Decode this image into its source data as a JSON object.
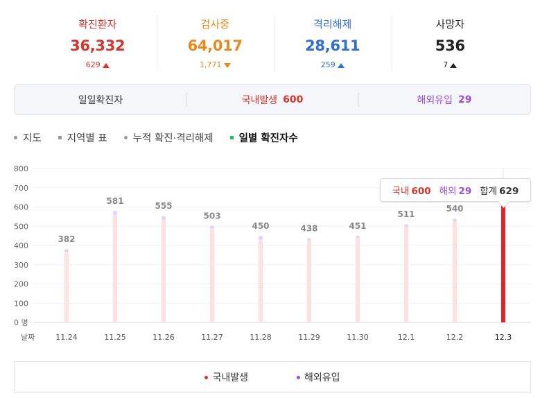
{
  "stats": [
    {
      "label": "확진환자",
      "value": "36,332",
      "delta": "629",
      "dir": "up",
      "color": "#d9342b"
    },
    {
      "label": "검사중",
      "value": "64,017",
      "delta": "1,771",
      "dir": "down",
      "color": "#e68a1c"
    },
    {
      "label": "격리해제",
      "value": "28,611",
      "delta": "259",
      "dir": "up",
      "color": "#2f6fd3"
    },
    {
      "label": "사망자",
      "value": "536",
      "delta": "7",
      "dir": "up",
      "color": "#222222"
    }
  ],
  "summary": {
    "daily_label": "일일확진자",
    "domestic_label": "국내발생",
    "domestic_value": "600",
    "overseas_label": "해외유입",
    "overseas_value": "29"
  },
  "tabs": [
    {
      "label": "지도",
      "active": false
    },
    {
      "label": "지역별 표",
      "active": false
    },
    {
      "label": "누적 확진·격리해제",
      "active": false
    },
    {
      "label": "일별 확진자수",
      "active": true
    }
  ],
  "tooltip": {
    "domestic_label": "국내",
    "domestic_value": "600",
    "overseas_label": "해외",
    "overseas_value": "29",
    "total_label": "합계",
    "total_value": "629"
  },
  "legend": [
    {
      "label": "국내발생",
      "color": "#d9342b"
    },
    {
      "label": "해외유입",
      "color": "#9b4fd8"
    }
  ],
  "chart_data": {
    "type": "bar",
    "stacked": true,
    "categories": [
      "11.24",
      "11.25",
      "11.26",
      "11.27",
      "11.28",
      "11.29",
      "11.30",
      "12.1",
      "12.2",
      "12.3"
    ],
    "x_axis_label": "날짜",
    "y_ticks": [
      "800",
      "700",
      "600",
      "500",
      "400",
      "300",
      "200",
      "100",
      "0 명"
    ],
    "ylim": [
      0,
      800
    ],
    "totals": [
      382,
      581,
      555,
      503,
      450,
      438,
      451,
      511,
      540,
      629
    ],
    "series": [
      {
        "name": "국내발생",
        "values": [
          363,
          555,
          530,
          487,
          428,
          423,
          438,
          495,
          521,
          600
        ],
        "color": "#fde0e0",
        "highlight_color": "#e0252b"
      },
      {
        "name": "해외유입",
        "values": [
          19,
          26,
          25,
          16,
          22,
          15,
          13,
          16,
          19,
          29
        ],
        "color": "#e4d4f8",
        "highlight_color": "#e0252b"
      }
    ],
    "highlight_index": 9,
    "grid": true,
    "legend_position": "bottom"
  }
}
